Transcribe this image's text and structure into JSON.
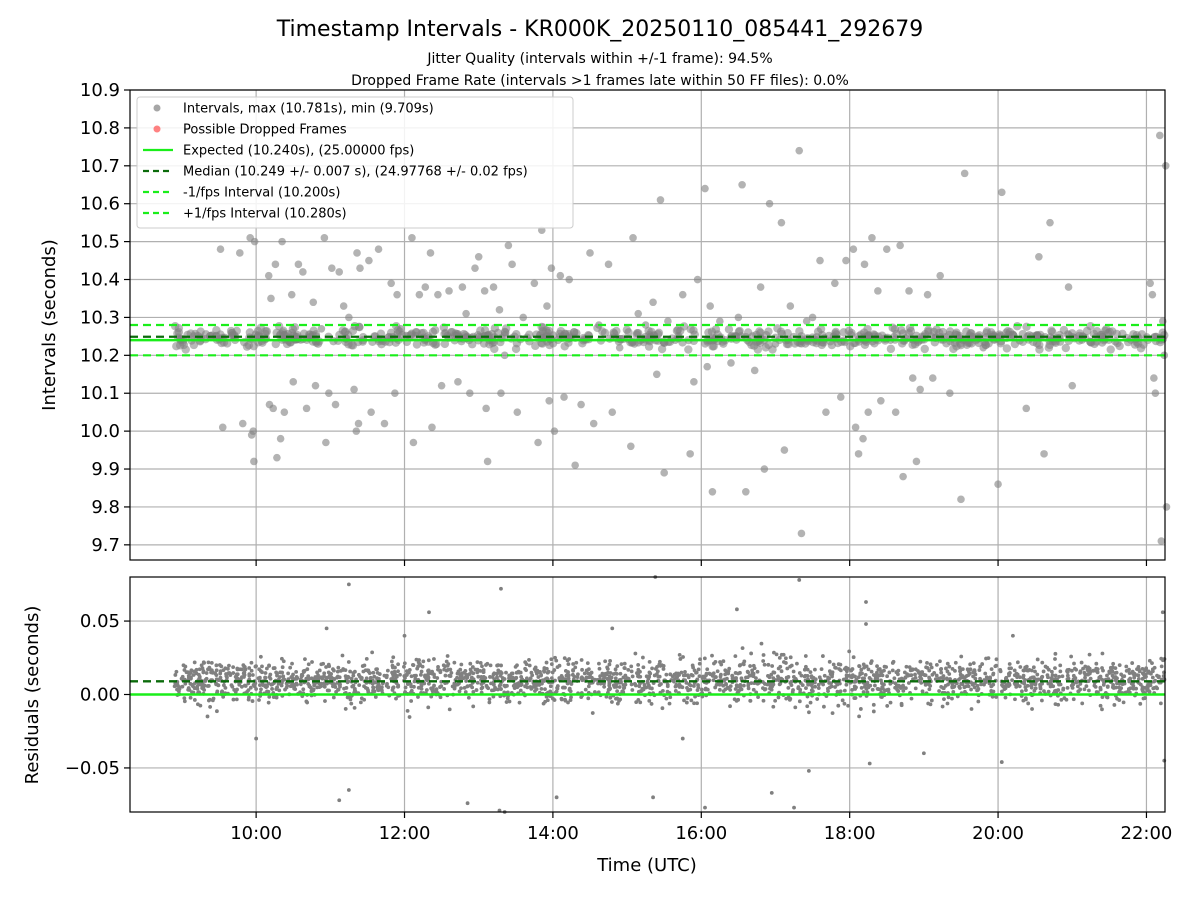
{
  "figure": {
    "title": "Timestamp Intervals - KR000K_20250110_085441_292679",
    "subtitle_1": "Jitter Quality (intervals within +/-1 frame): 94.5%",
    "subtitle_2": "Dropped Frame Rate (intervals >1 frames late within 50 FF files): 0.0%"
  },
  "colors": {
    "points": "#808080",
    "dropped": "#ff4d4d",
    "expected": "#1aee1a",
    "median": "#0b6b0b",
    "fps_interval": "#1aee1a",
    "grid": "#b0b0b0"
  },
  "chart_data": [
    {
      "type": "scatter",
      "id": "intervals",
      "ylabel": "Intervals (seconds)",
      "xlabel": "",
      "xlim_hours": [
        8.3,
        22.25
      ],
      "ylim": [
        9.66,
        10.9
      ],
      "grid": true,
      "legend_placement": "top-left",
      "yticks": [
        "9.7",
        "9.8",
        "9.9",
        "10.0",
        "10.1",
        "10.2",
        "10.3",
        "10.4",
        "10.5",
        "10.6",
        "10.7",
        "10.8",
        "10.9"
      ],
      "legend": [
        {
          "label": "Intervals, max (10.781s), min (9.709s)",
          "kind": "point",
          "color": "#808080"
        },
        {
          "label": "Possible Dropped Frames",
          "kind": "point",
          "color": "#ff4d4d"
        },
        {
          "label": "Expected (10.240s), (25.00000 fps)",
          "kind": "line",
          "color": "#1aee1a"
        },
        {
          "label": "Median (10.249 +/- 0.007 s), (24.97768 +/- 0.02 fps)",
          "kind": "dash",
          "color": "#0b6b0b"
        },
        {
          "label": "-1/fps Interval (10.200s)",
          "kind": "dash",
          "color": "#1aee1a"
        },
        {
          "label": "+1/fps Interval (10.280s)",
          "kind": "dash",
          "color": "#1aee1a"
        }
      ],
      "reference_lines": [
        {
          "name": "expected",
          "y": 10.24,
          "style": "solid"
        },
        {
          "name": "median",
          "y": 10.249,
          "style": "dashed"
        },
        {
          "name": "minus_1_fps",
          "y": 10.2,
          "style": "dashed"
        },
        {
          "name": "plus_1_fps",
          "y": 10.28,
          "style": "dashed"
        }
      ],
      "core_band": {
        "x_start_hours": 8.9,
        "x_end_hours": 22.25,
        "center": 10.246,
        "spread": 0.022,
        "count": 720
      },
      "outliers": [
        [
          9.52,
          10.48
        ],
        [
          9.55,
          10.01
        ],
        [
          9.78,
          10.47
        ],
        [
          9.82,
          10.02
        ],
        [
          9.92,
          10.51
        ],
        [
          9.94,
          9.99
        ],
        [
          9.96,
          10.0
        ],
        [
          9.97,
          9.92
        ],
        [
          9.98,
          10.5
        ],
        [
          10.17,
          10.41
        ],
        [
          10.18,
          10.07
        ],
        [
          10.2,
          10.35
        ],
        [
          10.23,
          10.06
        ],
        [
          10.26,
          10.44
        ],
        [
          10.28,
          9.93
        ],
        [
          10.33,
          9.98
        ],
        [
          10.35,
          10.5
        ],
        [
          10.38,
          10.05
        ],
        [
          10.48,
          10.36
        ],
        [
          10.5,
          10.13
        ],
        [
          10.57,
          10.44
        ],
        [
          10.63,
          10.42
        ],
        [
          10.68,
          10.06
        ],
        [
          10.77,
          10.34
        ],
        [
          10.8,
          10.12
        ],
        [
          10.88,
          10.27
        ],
        [
          10.92,
          10.51
        ],
        [
          10.94,
          9.97
        ],
        [
          10.98,
          10.1
        ],
        [
          11.02,
          10.43
        ],
        [
          11.07,
          10.07
        ],
        [
          11.12,
          10.42
        ],
        [
          11.18,
          10.33
        ],
        [
          11.25,
          10.3
        ],
        [
          11.32,
          10.11
        ],
        [
          11.35,
          10.0
        ],
        [
          11.36,
          10.47
        ],
        [
          11.38,
          10.02
        ],
        [
          11.4,
          10.43
        ],
        [
          11.52,
          10.45
        ],
        [
          11.55,
          10.05
        ],
        [
          11.65,
          10.48
        ],
        [
          11.73,
          10.02
        ],
        [
          11.82,
          10.39
        ],
        [
          11.87,
          10.1
        ],
        [
          11.9,
          10.36
        ],
        [
          11.95,
          10.27
        ],
        [
          12.1,
          10.51
        ],
        [
          12.12,
          9.97
        ],
        [
          12.2,
          10.36
        ],
        [
          12.28,
          10.38
        ],
        [
          12.35,
          10.47
        ],
        [
          12.37,
          10.01
        ],
        [
          12.45,
          10.36
        ],
        [
          12.5,
          10.12
        ],
        [
          12.55,
          10.26
        ],
        [
          12.6,
          10.37
        ],
        [
          12.72,
          10.13
        ],
        [
          12.78,
          10.38
        ],
        [
          12.83,
          10.31
        ],
        [
          12.88,
          10.1
        ],
        [
          12.95,
          10.43
        ],
        [
          13.0,
          10.46
        ],
        [
          13.08,
          10.37
        ],
        [
          13.1,
          10.06
        ],
        [
          13.12,
          9.92
        ],
        [
          13.2,
          10.38
        ],
        [
          13.28,
          10.32
        ],
        [
          13.3,
          10.1
        ],
        [
          13.35,
          10.2
        ],
        [
          13.4,
          10.49
        ],
        [
          13.45,
          10.44
        ],
        [
          13.52,
          10.05
        ],
        [
          13.6,
          10.3
        ],
        [
          13.75,
          10.39
        ],
        [
          13.8,
          9.97
        ],
        [
          13.85,
          10.53
        ],
        [
          13.92,
          10.33
        ],
        [
          13.95,
          10.08
        ],
        [
          13.98,
          10.43
        ],
        [
          14.02,
          10.0
        ],
        [
          14.1,
          10.41
        ],
        [
          14.15,
          10.09
        ],
        [
          14.22,
          10.4
        ],
        [
          14.3,
          9.91
        ],
        [
          14.38,
          10.07
        ],
        [
          14.5,
          10.47
        ],
        [
          14.55,
          10.02
        ],
        [
          14.62,
          10.28
        ],
        [
          14.75,
          10.44
        ],
        [
          14.8,
          10.05
        ],
        [
          14.9,
          10.22
        ],
        [
          15.05,
          9.96
        ],
        [
          15.08,
          10.51
        ],
        [
          15.15,
          10.31
        ],
        [
          15.25,
          10.28
        ],
        [
          15.35,
          10.34
        ],
        [
          15.4,
          10.15
        ],
        [
          15.45,
          10.61
        ],
        [
          15.5,
          9.89
        ],
        [
          15.55,
          10.29
        ],
        [
          15.65,
          10.24
        ],
        [
          15.75,
          10.36
        ],
        [
          15.85,
          9.94
        ],
        [
          15.9,
          10.13
        ],
        [
          15.95,
          10.4
        ],
        [
          16.05,
          10.64
        ],
        [
          16.08,
          10.17
        ],
        [
          16.12,
          10.33
        ],
        [
          16.15,
          9.84
        ],
        [
          16.25,
          10.29
        ],
        [
          16.4,
          10.18
        ],
        [
          16.5,
          10.3
        ],
        [
          16.55,
          10.65
        ],
        [
          16.6,
          9.84
        ],
        [
          16.72,
          10.16
        ],
        [
          16.8,
          10.38
        ],
        [
          16.85,
          9.9
        ],
        [
          16.92,
          10.6
        ],
        [
          17.0,
          10.23
        ],
        [
          17.08,
          10.55
        ],
        [
          17.12,
          9.95
        ],
        [
          17.2,
          10.33
        ],
        [
          17.32,
          10.74
        ],
        [
          17.35,
          9.73
        ],
        [
          17.42,
          10.29
        ],
        [
          17.5,
          10.3
        ],
        [
          17.6,
          10.45
        ],
        [
          17.68,
          10.05
        ],
        [
          17.8,
          10.39
        ],
        [
          17.88,
          10.09
        ],
        [
          17.95,
          10.45
        ],
        [
          18.05,
          10.48
        ],
        [
          18.08,
          10.01
        ],
        [
          18.12,
          9.94
        ],
        [
          18.18,
          9.98
        ],
        [
          18.2,
          10.44
        ],
        [
          18.25,
          10.05
        ],
        [
          18.3,
          10.51
        ],
        [
          18.38,
          10.37
        ],
        [
          18.42,
          10.08
        ],
        [
          18.5,
          10.48
        ],
        [
          18.55,
          10.24
        ],
        [
          18.62,
          10.05
        ],
        [
          18.68,
          10.49
        ],
        [
          18.72,
          9.88
        ],
        [
          18.8,
          10.37
        ],
        [
          18.85,
          10.14
        ],
        [
          18.9,
          9.92
        ],
        [
          18.95,
          10.11
        ],
        [
          19.05,
          10.36
        ],
        [
          19.12,
          10.14
        ],
        [
          19.22,
          10.41
        ],
        [
          19.35,
          10.1
        ],
        [
          19.5,
          9.82
        ],
        [
          19.55,
          10.68
        ],
        [
          19.65,
          10.25
        ],
        [
          19.8,
          10.22
        ],
        [
          20.0,
          9.86
        ],
        [
          20.05,
          10.63
        ],
        [
          20.38,
          10.06
        ],
        [
          20.55,
          10.46
        ],
        [
          20.62,
          9.94
        ],
        [
          20.7,
          10.55
        ],
        [
          20.95,
          10.38
        ],
        [
          21.0,
          10.12
        ],
        [
          22.05,
          10.39
        ],
        [
          22.08,
          10.36
        ],
        [
          22.1,
          10.14
        ],
        [
          22.12,
          10.1
        ],
        [
          22.18,
          10.78
        ],
        [
          22.2,
          9.71
        ],
        [
          22.22,
          10.29
        ],
        [
          22.24,
          10.2
        ],
        [
          22.26,
          10.7
        ],
        [
          22.27,
          9.8
        ]
      ]
    },
    {
      "type": "scatter",
      "id": "residuals",
      "ylabel": "Residuals (seconds)",
      "xlabel": "Time (UTC)",
      "xlim_hours": [
        8.3,
        22.25
      ],
      "ylim": [
        -0.08,
        0.08
      ],
      "grid": true,
      "yticks": [
        "0.05",
        "0.00",
        "−0.05"
      ],
      "ytick_values": [
        0.05,
        0.0,
        -0.05
      ],
      "xticks": [
        "10:00",
        "12:00",
        "14:00",
        "16:00",
        "18:00",
        "20:00",
        "22:00"
      ],
      "xtick_hours": [
        10,
        12,
        14,
        16,
        18,
        20,
        22
      ],
      "reference_lines": [
        {
          "name": "median_offset",
          "y": 0.009,
          "style": "dashed"
        },
        {
          "name": "expected_baseline",
          "y": 0.0,
          "style": "solid"
        }
      ],
      "core_band": {
        "x_start_hours": 8.9,
        "x_end_hours": 22.25,
        "center": 0.009,
        "spread": 0.012,
        "count": 2400
      },
      "outliers": [
        [
          11.25,
          0.075
        ],
        [
          12.33,
          0.056
        ],
        [
          13.3,
          0.072
        ],
        [
          11.12,
          -0.072
        ],
        [
          11.25,
          -0.065
        ],
        [
          12.85,
          -0.074
        ],
        [
          13.28,
          -0.079
        ],
        [
          13.35,
          -0.08
        ],
        [
          14.05,
          -0.07
        ],
        [
          15.38,
          0.08
        ],
        [
          15.35,
          -0.07
        ],
        [
          16.05,
          -0.077
        ],
        [
          16.48,
          0.058
        ],
        [
          16.95,
          -0.067
        ],
        [
          17.25,
          -0.077
        ],
        [
          17.32,
          0.078
        ],
        [
          18.22,
          0.063
        ],
        [
          18.27,
          -0.047
        ],
        [
          18.22,
          0.048
        ],
        [
          20.05,
          -0.046
        ],
        [
          22.22,
          0.056
        ],
        [
          22.24,
          -0.045
        ],
        [
          15.75,
          -0.03
        ],
        [
          17.45,
          -0.052
        ],
        [
          10.95,
          0.045
        ],
        [
          10.0,
          -0.03
        ],
        [
          12.0,
          0.04
        ],
        [
          19.0,
          -0.04
        ],
        [
          20.2,
          0.04
        ],
        [
          14.8,
          0.045
        ]
      ]
    }
  ]
}
